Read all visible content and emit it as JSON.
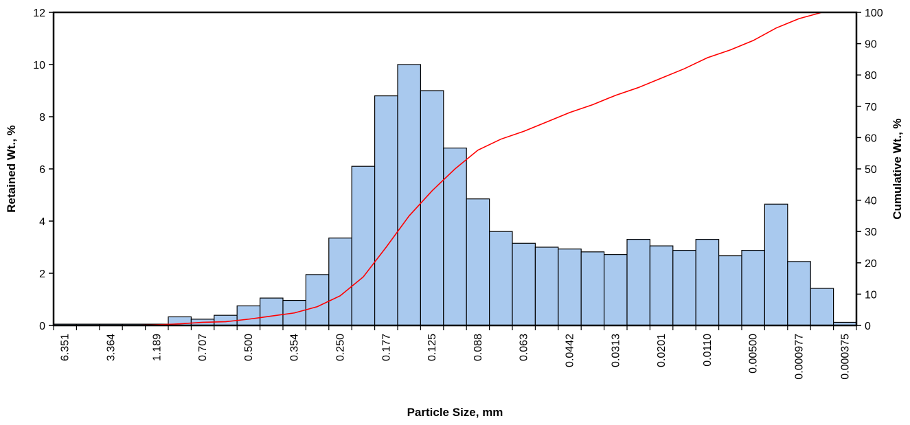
{
  "chart_data": {
    "type": "bar",
    "xlabel": "Particle Size, mm",
    "ylabel": "Retained Wt., %",
    "y2label": "Cumulative Wt., %",
    "ylim": [
      0,
      12
    ],
    "y2lim": [
      0,
      100
    ],
    "yticks": [
      "0",
      "2",
      "4",
      "6",
      "8",
      "10",
      "12"
    ],
    "y2ticks": [
      "0",
      "10",
      "20",
      "30",
      "40",
      "50",
      "60",
      "70",
      "80",
      "90",
      "100"
    ],
    "x_tick_labels": [
      "6.351",
      "3.364",
      "1.189",
      "0.707",
      "0.500",
      "0.354",
      "0.250",
      "0.177",
      "0.125",
      "0.088",
      "0.063",
      "0.0442",
      "0.0313",
      "0.0201",
      "0.0110",
      "0.00500",
      "0.000977",
      "0.000375"
    ],
    "bar_color": "#a9c9ee",
    "line_color": "#ff0000",
    "series": [
      {
        "type": "bar",
        "axis": "left",
        "values": [
          0.05,
          0.05,
          0.05,
          0.05,
          0.05,
          0.33,
          0.24,
          0.39,
          0.75,
          1.05,
          0.96,
          1.95,
          3.35,
          6.1,
          8.8,
          10.0,
          9.0,
          6.8,
          4.85,
          3.6,
          3.15,
          3.0,
          2.93,
          2.82,
          2.72,
          3.3,
          3.05,
          2.88,
          3.3,
          2.67,
          2.88,
          4.65,
          2.45,
          1.42,
          0.12
        ]
      },
      {
        "type": "line",
        "axis": "right",
        "values": [
          0,
          0,
          0,
          0,
          0.2,
          0.5,
          1.0,
          1.2,
          2.0,
          3.0,
          4.0,
          6.0,
          9.5,
          15.5,
          25.0,
          35.0,
          43.0,
          50.0,
          56.0,
          59.5,
          62.0,
          65.0,
          68.0,
          70.5,
          73.5,
          76.0,
          79.0,
          82.0,
          85.5,
          88.0,
          91.0,
          95.0,
          98.0,
          100,
          100
        ]
      }
    ]
  }
}
